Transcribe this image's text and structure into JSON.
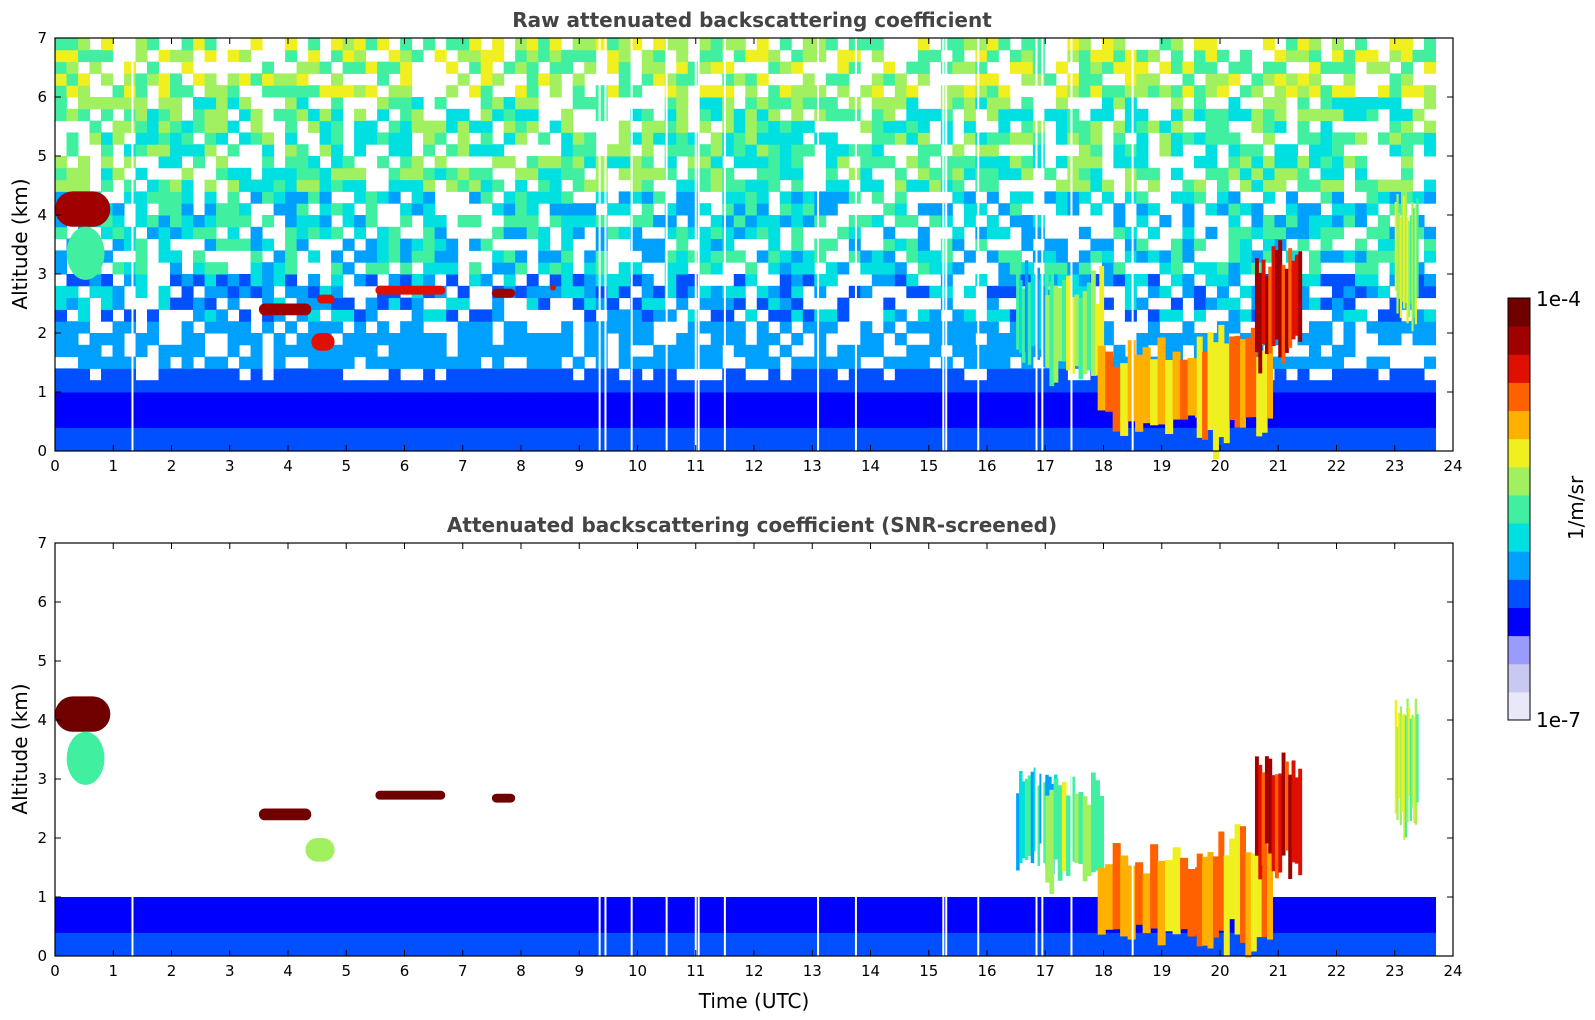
{
  "chart_data": {
    "type": "heatmap",
    "colorbar": {
      "label": "1/m/sr",
      "min_label": "1e-7",
      "max_label": "1e-4",
      "scale": "log",
      "colormap": [
        "#e8e8f8",
        "#c8c8f0",
        "#9a9aff",
        "#0000ff",
        "#0050ff",
        "#00a0ff",
        "#00e0e0",
        "#40f0a0",
        "#a0f060",
        "#f0f020",
        "#ffb000",
        "#ff6000",
        "#e01000",
        "#a00000",
        "#700000"
      ]
    },
    "x_ticks": [
      "0",
      "1",
      "2",
      "3",
      "4",
      "5",
      "6",
      "7",
      "8",
      "9",
      "10",
      "11",
      "12",
      "13",
      "14",
      "15",
      "16",
      "17",
      "18",
      "19",
      "20",
      "21",
      "22",
      "23",
      "24"
    ],
    "y_ticks": [
      "0",
      "1",
      "2",
      "3",
      "4",
      "5",
      "6",
      "7"
    ],
    "xlim": [
      0,
      24
    ],
    "ylim": [
      0,
      7
    ],
    "data_end_hour": 23.7,
    "panels": [
      {
        "id": "raw",
        "title": "Raw attenuated backscattering coefficient",
        "ylabel": "Altitude (km)",
        "xlabel": "",
        "noise_above_background": true,
        "features": [
          {
            "kind": "layer",
            "t0": 0.0,
            "t1": 0.95,
            "z0": 3.8,
            "z1": 4.4,
            "level": 13
          },
          {
            "kind": "layer",
            "t0": 0.2,
            "t1": 0.85,
            "z0": 2.9,
            "z1": 3.8,
            "level": 7
          },
          {
            "kind": "layer",
            "t0": 3.5,
            "t1": 4.4,
            "z0": 2.3,
            "z1": 2.5,
            "level": 13
          },
          {
            "kind": "layer",
            "t0": 4.4,
            "t1": 4.8,
            "z0": 1.7,
            "z1": 2.0,
            "level": 12
          },
          {
            "kind": "layer",
            "t0": 4.5,
            "t1": 4.8,
            "z0": 2.5,
            "z1": 2.65,
            "level": 12
          },
          {
            "kind": "layer",
            "t0": 5.5,
            "t1": 6.7,
            "z0": 2.65,
            "z1": 2.8,
            "level": 12
          },
          {
            "kind": "layer",
            "t0": 7.5,
            "t1": 7.9,
            "z0": 2.6,
            "z1": 2.75,
            "level": 13
          },
          {
            "kind": "layer",
            "t0": 8.5,
            "t1": 8.6,
            "z0": 2.72,
            "z1": 2.82,
            "level": 12
          },
          {
            "kind": "cloud",
            "t0": 16.5,
            "t1": 17.2,
            "z0": 1.5,
            "z1": 3.1,
            "level": 6
          },
          {
            "kind": "cloud",
            "t0": 17.0,
            "t1": 18.0,
            "z0": 1.2,
            "z1": 3.0,
            "level": 8
          },
          {
            "kind": "cloud",
            "t0": 17.9,
            "t1": 19.7,
            "z0": 0.3,
            "z1": 1.8,
            "level": 10
          },
          {
            "kind": "cloud",
            "t0": 19.6,
            "t1": 20.9,
            "z0": 0.1,
            "z1": 2.1,
            "level": 10
          },
          {
            "kind": "cloud",
            "t0": 20.6,
            "t1": 21.4,
            "z0": 1.4,
            "z1": 3.4,
            "level": 12
          },
          {
            "kind": "cloud",
            "t0": 23.0,
            "t1": 23.4,
            "z0": 2.2,
            "z1": 4.4,
            "level": 8
          }
        ]
      },
      {
        "id": "screened",
        "title": "Attenuated backscattering coefficient (SNR-screened)",
        "ylabel": "Altitude (km)",
        "xlabel": "Time (UTC)",
        "noise_above_background": false,
        "features": [
          {
            "kind": "layer",
            "t0": 0.0,
            "t1": 0.95,
            "z0": 3.8,
            "z1": 4.4,
            "level": 14
          },
          {
            "kind": "layer",
            "t0": 0.2,
            "t1": 0.85,
            "z0": 2.9,
            "z1": 3.8,
            "level": 7
          },
          {
            "kind": "layer",
            "t0": 3.5,
            "t1": 4.4,
            "z0": 2.3,
            "z1": 2.5,
            "level": 14
          },
          {
            "kind": "layer",
            "t0": 4.3,
            "t1": 4.8,
            "z0": 1.6,
            "z1": 2.0,
            "level": 8
          },
          {
            "kind": "layer",
            "t0": 5.5,
            "t1": 6.7,
            "z0": 2.65,
            "z1": 2.8,
            "level": 14
          },
          {
            "kind": "layer",
            "t0": 7.5,
            "t1": 7.9,
            "z0": 2.6,
            "z1": 2.75,
            "level": 14
          },
          {
            "kind": "cloud",
            "t0": 16.5,
            "t1": 17.2,
            "z0": 1.5,
            "z1": 3.1,
            "level": 6
          },
          {
            "kind": "cloud",
            "t0": 17.0,
            "t1": 18.0,
            "z0": 1.2,
            "z1": 3.0,
            "level": 8
          },
          {
            "kind": "cloud",
            "t0": 17.9,
            "t1": 19.7,
            "z0": 0.3,
            "z1": 1.8,
            "level": 10
          },
          {
            "kind": "cloud",
            "t0": 19.6,
            "t1": 20.9,
            "z0": 0.1,
            "z1": 2.1,
            "level": 10
          },
          {
            "kind": "cloud",
            "t0": 20.6,
            "t1": 21.4,
            "z0": 1.4,
            "z1": 3.4,
            "level": 12
          },
          {
            "kind": "cloud",
            "t0": 23.0,
            "t1": 23.4,
            "z0": 2.2,
            "z1": 4.4,
            "level": 8
          }
        ]
      }
    ],
    "data_gaps_hours": [
      1.33,
      9.35,
      9.45,
      9.9,
      10.5,
      11.0,
      11.05,
      11.5,
      13.1,
      13.75,
      15.25,
      15.3,
      15.85,
      16.85,
      16.95,
      17.45,
      18.5
    ]
  }
}
